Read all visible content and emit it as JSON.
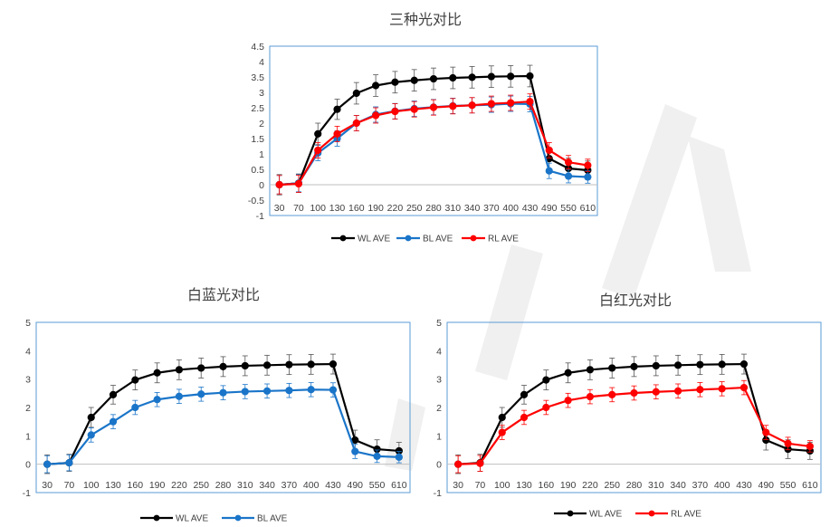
{
  "chart_data": [
    {
      "type": "line",
      "title": "三种光对比",
      "categories": [
        "30",
        "70",
        "100",
        "130",
        "160",
        "190",
        "220",
        "250",
        "280",
        "310",
        "340",
        "370",
        "400",
        "430",
        "490",
        "550",
        "610"
      ],
      "ylim": [
        -1,
        4.5
      ],
      "yticks": [
        "-1",
        "-0.5",
        "0",
        "0.5",
        "1",
        "1.5",
        "2",
        "2.5",
        "3",
        "3.5",
        "4",
        "4.5"
      ],
      "legend_position": "bottom",
      "grid": false,
      "series": [
        {
          "name": "WL AVE",
          "color": "#000000",
          "values": [
            0,
            0.05,
            1.65,
            2.45,
            2.97,
            3.22,
            3.33,
            3.39,
            3.44,
            3.47,
            3.49,
            3.51,
            3.52,
            3.53,
            0.85,
            0.53,
            0.47
          ],
          "errors": [
            0.33,
            0.3,
            0.35,
            0.33,
            0.35,
            0.35,
            0.35,
            0.35,
            0.35,
            0.35,
            0.35,
            0.35,
            0.35,
            0.35,
            0.35,
            0.33,
            0.3
          ]
        },
        {
          "name": "BL AVE",
          "color": "#1a75c9",
          "values": [
            0,
            0.05,
            1.03,
            1.5,
            2.0,
            2.28,
            2.39,
            2.47,
            2.52,
            2.56,
            2.58,
            2.6,
            2.63,
            2.62,
            0.45,
            0.28,
            0.25
          ],
          "errors": [
            0.3,
            0.28,
            0.25,
            0.25,
            0.25,
            0.25,
            0.25,
            0.25,
            0.25,
            0.25,
            0.25,
            0.25,
            0.25,
            0.25,
            0.25,
            0.22,
            0.2
          ]
        },
        {
          "name": "RL AVE",
          "color": "#ff0000",
          "values": [
            0,
            0.03,
            1.12,
            1.65,
            2.0,
            2.25,
            2.38,
            2.45,
            2.51,
            2.55,
            2.58,
            2.63,
            2.66,
            2.7,
            1.12,
            0.73,
            0.63
          ],
          "errors": [
            0.3,
            0.28,
            0.25,
            0.25,
            0.25,
            0.25,
            0.25,
            0.25,
            0.25,
            0.25,
            0.25,
            0.25,
            0.25,
            0.25,
            0.25,
            0.22,
            0.2
          ]
        }
      ]
    },
    {
      "type": "line",
      "title": "白蓝光对比",
      "categories": [
        "30",
        "70",
        "100",
        "130",
        "160",
        "190",
        "220",
        "250",
        "280",
        "310",
        "340",
        "370",
        "400",
        "430",
        "490",
        "550",
        "610"
      ],
      "ylim": [
        -1,
        5
      ],
      "yticks": [
        "-1",
        "0",
        "1",
        "2",
        "3",
        "4",
        "5"
      ],
      "legend_position": "bottom",
      "grid": false,
      "series": [
        {
          "name": "WL AVE",
          "color": "#000000",
          "values": [
            0,
            0.05,
            1.65,
            2.45,
            2.97,
            3.22,
            3.33,
            3.39,
            3.44,
            3.47,
            3.49,
            3.51,
            3.52,
            3.53,
            0.85,
            0.53,
            0.47
          ],
          "errors": [
            0.33,
            0.3,
            0.35,
            0.33,
            0.35,
            0.35,
            0.35,
            0.35,
            0.35,
            0.35,
            0.35,
            0.35,
            0.35,
            0.35,
            0.35,
            0.33,
            0.3
          ]
        },
        {
          "name": "BL AVE",
          "color": "#1a75c9",
          "values": [
            0,
            0.05,
            1.03,
            1.5,
            2.0,
            2.28,
            2.39,
            2.47,
            2.52,
            2.56,
            2.58,
            2.6,
            2.63,
            2.62,
            0.45,
            0.28,
            0.25
          ],
          "errors": [
            0.3,
            0.28,
            0.25,
            0.25,
            0.25,
            0.25,
            0.25,
            0.25,
            0.25,
            0.25,
            0.25,
            0.25,
            0.25,
            0.25,
            0.25,
            0.22,
            0.2
          ]
        }
      ]
    },
    {
      "type": "line",
      "title": "白红光对比",
      "categories": [
        "30",
        "70",
        "100",
        "130",
        "160",
        "190",
        "220",
        "250",
        "280",
        "310",
        "340",
        "370",
        "400",
        "430",
        "490",
        "550",
        "610"
      ],
      "ylim": [
        -1,
        5
      ],
      "yticks": [
        "-1",
        "0",
        "1",
        "2",
        "3",
        "4",
        "5"
      ],
      "legend_position": "bottom",
      "grid": false,
      "series": [
        {
          "name": "WL AVE",
          "color": "#000000",
          "values": [
            0,
            0.05,
            1.65,
            2.45,
            2.97,
            3.22,
            3.33,
            3.39,
            3.44,
            3.47,
            3.49,
            3.51,
            3.52,
            3.53,
            0.85,
            0.53,
            0.47
          ],
          "errors": [
            0.33,
            0.3,
            0.35,
            0.33,
            0.35,
            0.35,
            0.35,
            0.35,
            0.35,
            0.35,
            0.35,
            0.35,
            0.35,
            0.35,
            0.35,
            0.33,
            0.3
          ]
        },
        {
          "name": "RL AVE",
          "color": "#ff0000",
          "values": [
            0,
            0.03,
            1.12,
            1.65,
            2.0,
            2.25,
            2.38,
            2.45,
            2.51,
            2.55,
            2.58,
            2.63,
            2.66,
            2.7,
            1.12,
            0.73,
            0.63
          ],
          "errors": [
            0.3,
            0.28,
            0.25,
            0.25,
            0.25,
            0.25,
            0.25,
            0.25,
            0.25,
            0.25,
            0.25,
            0.25,
            0.25,
            0.25,
            0.25,
            0.22,
            0.2
          ]
        }
      ]
    }
  ]
}
